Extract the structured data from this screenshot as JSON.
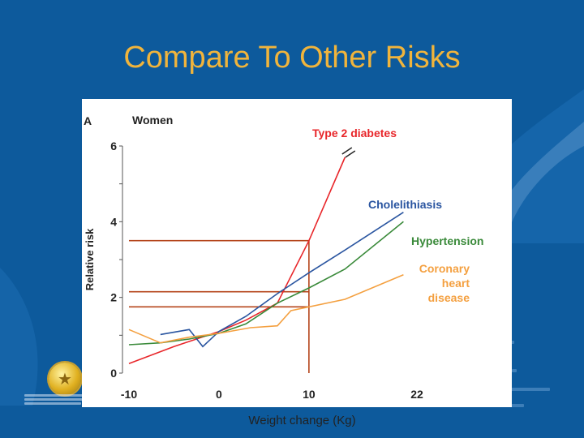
{
  "slide": {
    "title": "Compare To Other Risks",
    "x_caption": "Weight change (Kg)"
  },
  "colors": {
    "background": "#0d5a9c",
    "title": "#f0b43c",
    "type2_diabetes": "#e8262a",
    "cholelithiasis": "#2a55a0",
    "hypertension": "#3a8a3a",
    "chd": "#f4a040",
    "reference_lines": "#b5451b"
  },
  "chart_data": {
    "type": "line",
    "panel_label": "A",
    "title": "Women",
    "ylabel": "Relative risk",
    "xlabel": "Weight change (Kg)",
    "xlim": [
      -10,
      22
    ],
    "ylim": [
      0,
      6.5
    ],
    "x_ticks": [
      -10,
      0,
      10,
      22
    ],
    "y_ticks": [
      0,
      2,
      4,
      6
    ],
    "grid": false,
    "series": [
      {
        "name": "Type 2 diabetes",
        "color": "#e8262a",
        "x": [
          -10,
          -5,
          0,
          3,
          6.5,
          10,
          14
        ],
        "y": [
          0.25,
          0.7,
          1.1,
          1.4,
          1.85,
          3.5,
          5.7
        ],
        "axis_break_near": 14.5
      },
      {
        "name": "Cholelithiasis",
        "color": "#2a55a0",
        "x": [
          -6.5,
          -3.3,
          -1.8,
          0,
          3,
          6.5,
          10,
          14,
          20.5
        ],
        "y": [
          1.02,
          1.15,
          0.7,
          1.1,
          1.5,
          2.1,
          2.65,
          3.25,
          4.25
        ],
        "legend_position": "upper-right"
      },
      {
        "name": "Hypertension",
        "color": "#3a8a3a",
        "x": [
          -10,
          -6.5,
          -3.3,
          0,
          3,
          6.5,
          10,
          14,
          20.5
        ],
        "y": [
          0.75,
          0.8,
          0.9,
          1.05,
          1.3,
          1.85,
          2.25,
          2.75,
          4.0
        ],
        "legend_position": "right"
      },
      {
        "name": "Coronary heart disease",
        "label_lines": [
          "Coronary",
          "heart",
          "disease"
        ],
        "color": "#f4a040",
        "x": [
          -10,
          -6.5,
          -3.3,
          0,
          3.5,
          6.5,
          8,
          10,
          14,
          20.5
        ],
        "y": [
          1.15,
          0.8,
          0.95,
          1.05,
          1.2,
          1.25,
          1.65,
          1.75,
          1.95,
          2.6
        ],
        "legend_position": "lower-right"
      }
    ],
    "reference_lines": {
      "x": 10,
      "y_levels": [
        1.75,
        2.15,
        3.5
      ]
    }
  }
}
